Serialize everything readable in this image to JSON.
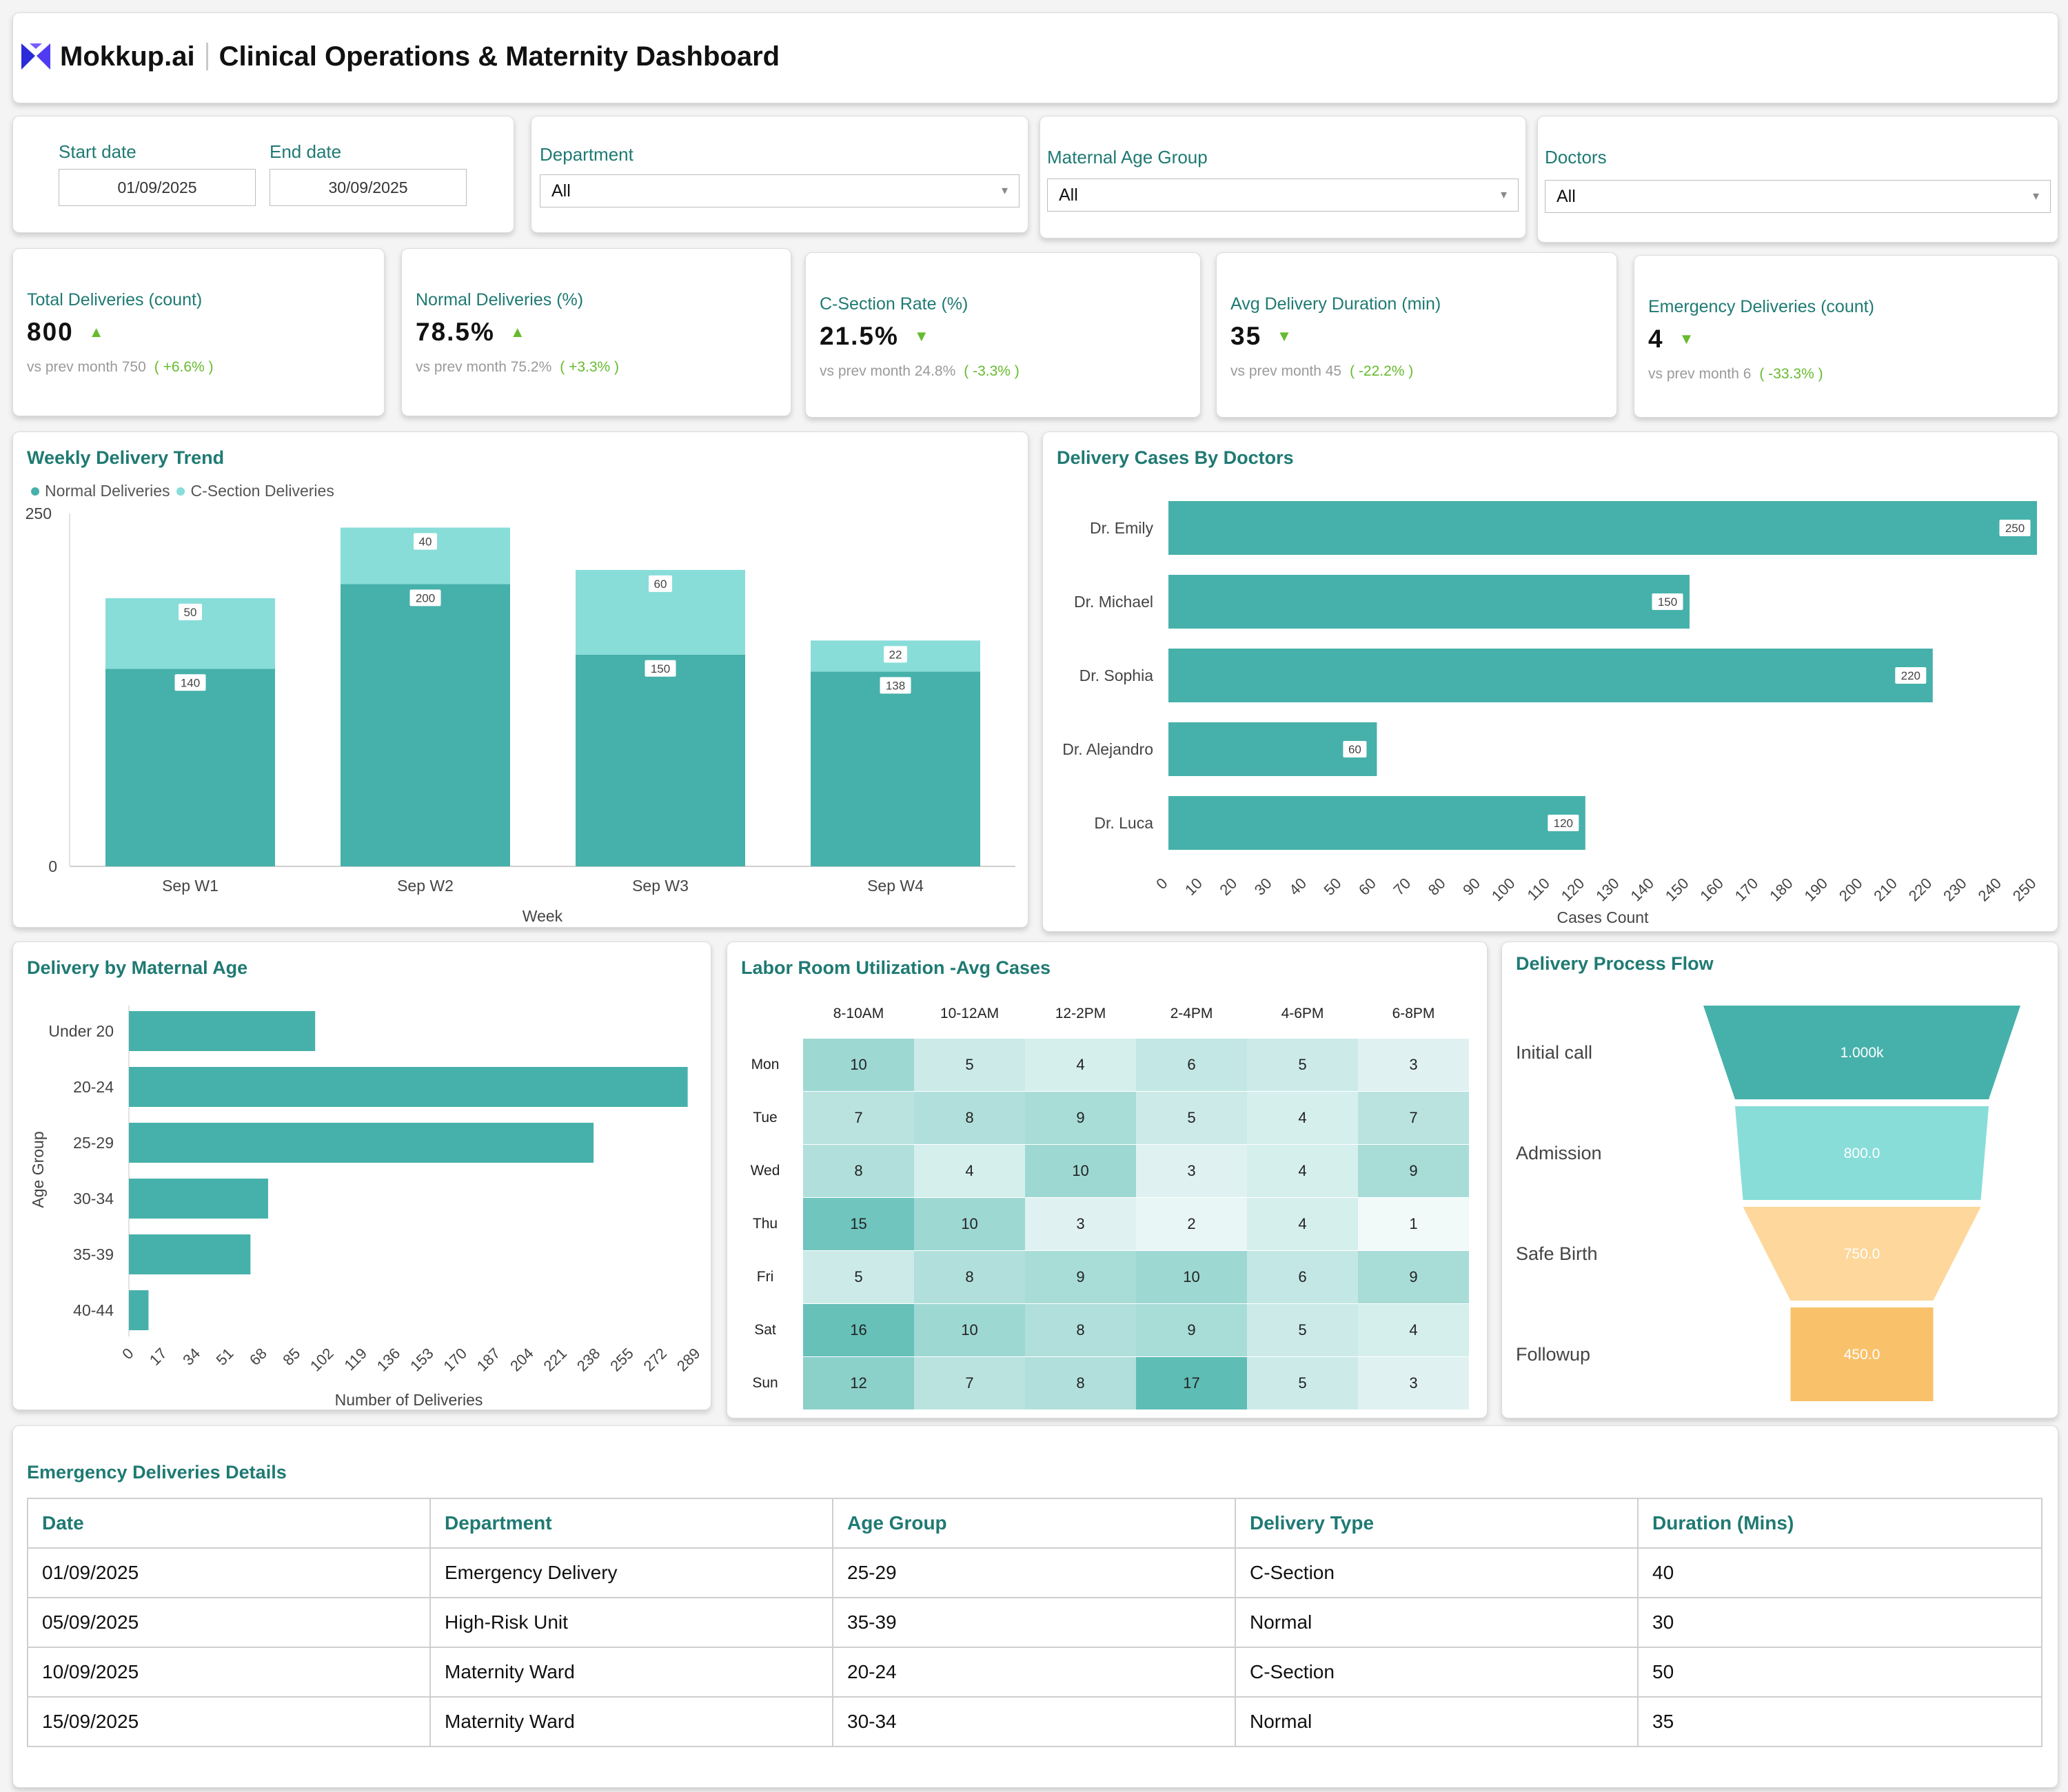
{
  "header": {
    "brand": "Mokkup.ai",
    "title": "Clinical Operations & Maternity Dashboard"
  },
  "filters": {
    "start_date_label": "Start date",
    "start_date": "01/09/2025",
    "end_date_label": "End date",
    "end_date": "30/09/2025",
    "department_label": "Department",
    "department": "All",
    "age_group_label": "Maternal Age Group",
    "age_group": "All",
    "doctors_label": "Doctors",
    "doctors": "All"
  },
  "kpis": [
    {
      "title": "Total Deliveries (count)",
      "value": "800",
      "trend": "up",
      "prev_label": "vs prev month",
      "prev": "750",
      "delta": "( +6.6% )"
    },
    {
      "title": "Normal Deliveries (%)",
      "value": "78.5%",
      "trend": "up",
      "prev_label": "vs prev month",
      "prev": "75.2%",
      "delta": "( +3.3% )"
    },
    {
      "title": "C-Section Rate (%)",
      "value": "21.5%",
      "trend": "down",
      "prev_label": "vs prev month",
      "prev": "24.8%",
      "delta": "( -3.3% )"
    },
    {
      "title": "Avg Delivery Duration (min)",
      "value": "35",
      "trend": "down",
      "prev_label": "vs prev month",
      "prev": "45",
      "delta": "( -22.2% )"
    },
    {
      "title": "Emergency Deliveries (count)",
      "value": "4",
      "trend": "down",
      "prev_label": "vs prev month",
      "prev": "6",
      "delta": "( -33.3% )"
    }
  ],
  "colors": {
    "teal": "#46b1aa",
    "light_teal": "#88ddd9",
    "peach": "#fdd79b",
    "orange": "#f9c16a",
    "title": "#1f7a73",
    "up_green": "#66bb2e"
  },
  "weekly": {
    "title": "Weekly Delivery Trend",
    "chart_data": {
      "type": "bar",
      "stacked": true,
      "categories": [
        "Sep W1",
        "Sep W2",
        "Sep W3",
        "Sep W4"
      ],
      "series": [
        {
          "name": "Normal Deliveries",
          "values": [
            140,
            200,
            150,
            138
          ]
        },
        {
          "name": "C-Section Deliveries",
          "values": [
            50,
            40,
            60,
            22
          ]
        }
      ],
      "xlabel": "Week",
      "ylabel": "",
      "yticks": [
        "0",
        "250"
      ],
      "ylim": [
        0,
        250
      ],
      "legend": "top-left"
    }
  },
  "doctors_chart": {
    "title": "Delivery Cases By Doctors",
    "chart_data": {
      "type": "bar",
      "orientation": "horizontal",
      "categories": [
        "Dr. Emily",
        "Dr. Michael",
        "Dr. Sophia",
        "Dr. Alejandro",
        "Dr. Luca"
      ],
      "values": [
        250,
        150,
        220,
        60,
        120
      ],
      "xlabel": "Cases Count",
      "xticks": [
        "0",
        "10",
        "20",
        "30",
        "40",
        "50",
        "60",
        "70",
        "80",
        "90",
        "100",
        "110",
        "120",
        "130",
        "140",
        "150",
        "160",
        "170",
        "180",
        "190",
        "200",
        "210",
        "220",
        "230",
        "240",
        "250"
      ],
      "xlim": [
        0,
        250
      ]
    }
  },
  "age_chart": {
    "title": "Delivery by Maternal Age",
    "chart_data": {
      "type": "bar",
      "orientation": "horizontal",
      "categories": [
        "Under 20",
        "20-24",
        "25-29",
        "30-34",
        "35-39",
        "40-44"
      ],
      "values": [
        95,
        285,
        237,
        71,
        62,
        10
      ],
      "xlabel": "Number of Deliveries",
      "ylabel": "Age Group",
      "xticks": [
        "0",
        "17",
        "34",
        "51",
        "68",
        "85",
        "102",
        "119",
        "136",
        "153",
        "170",
        "187",
        "204",
        "221",
        "238",
        "255",
        "272",
        "289"
      ],
      "xlim": [
        0,
        289
      ]
    }
  },
  "heatmap": {
    "title": "Labor Room Utilization -Avg Cases",
    "chart_data": {
      "type": "heatmap",
      "columns": [
        "8-10AM",
        "10-12AM",
        "12-2PM",
        "2-4PM",
        "4-6PM",
        "6-8PM"
      ],
      "rows": [
        "Mon",
        "Tue",
        "Wed",
        "Thu",
        "Fri",
        "Sat",
        "Sun"
      ],
      "values": [
        [
          10,
          5,
          4,
          6,
          5,
          3
        ],
        [
          7,
          8,
          9,
          5,
          4,
          7
        ],
        [
          8,
          4,
          10,
          3,
          4,
          9
        ],
        [
          15,
          10,
          3,
          2,
          4,
          1
        ],
        [
          5,
          8,
          9,
          10,
          6,
          9
        ],
        [
          16,
          10,
          8,
          9,
          5,
          4
        ],
        [
          12,
          7,
          8,
          17,
          5,
          3
        ]
      ]
    }
  },
  "funnel": {
    "title": "Delivery Process Flow",
    "chart_data": {
      "type": "funnel",
      "categories": [
        "Initial call",
        "Admission",
        "Safe Birth",
        "Followup"
      ],
      "values": [
        1000,
        800,
        750,
        450
      ],
      "labels": [
        "1.000k",
        "800.0",
        "750.0",
        "450.0"
      ]
    }
  },
  "emergency": {
    "title": "Emergency Deliveries Details",
    "columns": [
      "Date",
      "Department",
      "Age Group",
      "Delivery Type",
      "Duration (Mins)"
    ],
    "rows": [
      [
        "01/09/2025",
        "Emergency Delivery",
        "25-29",
        "C-Section",
        "40"
      ],
      [
        "05/09/2025",
        "High-Risk Unit",
        "35-39",
        "Normal",
        "30"
      ],
      [
        "10/09/2025",
        "Maternity Ward",
        "20-24",
        "C-Section",
        "50"
      ],
      [
        "15/09/2025",
        "Maternity Ward",
        "30-34",
        "Normal",
        "35"
      ]
    ]
  }
}
